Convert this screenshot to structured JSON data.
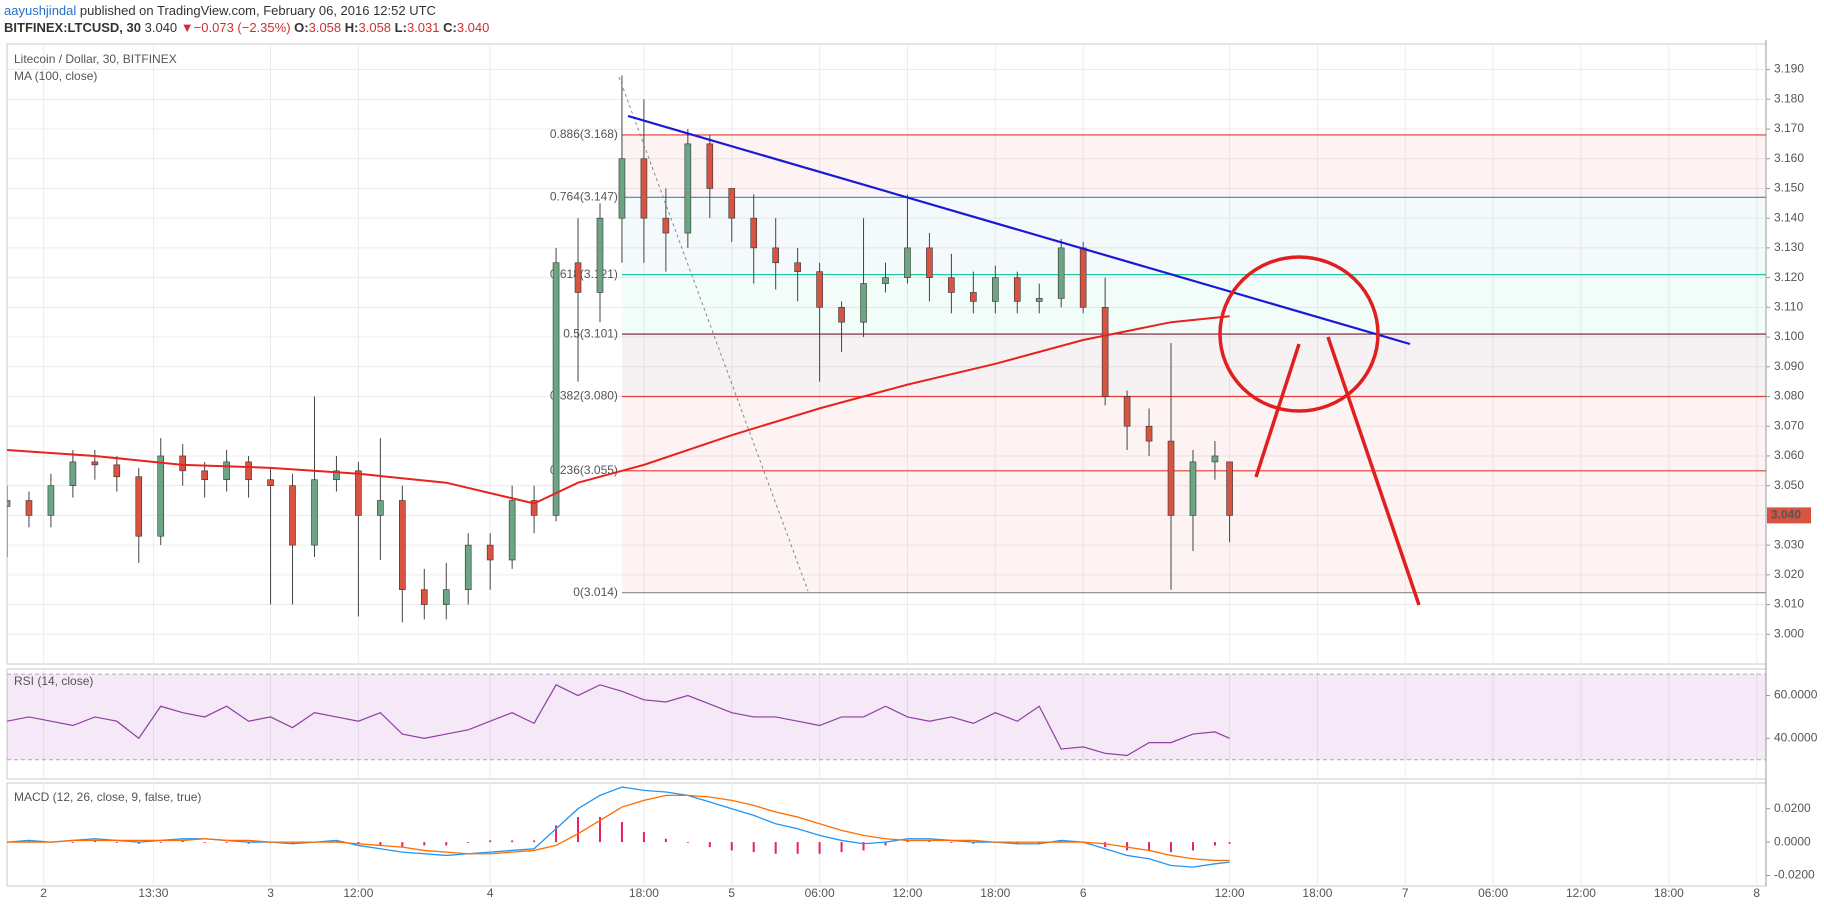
{
  "header": {
    "author": "aayushjindal",
    "published": "published on TradingView.com, February 06, 2016 12:52 UTC",
    "symbol": "BITFINEX:LTCUSD, 30",
    "last": "3.040",
    "change": "−0.073 (−2.35%)",
    "o_label": "O:",
    "o": "3.058",
    "h_label": "H:",
    "h": "3.058",
    "l_label": "L:",
    "l": "3.031",
    "c_label": "C:",
    "c": "3.040"
  },
  "chart_data": [
    {
      "type": "candlestick",
      "title": "Litecoin / Dollar, 30, BITFINEX",
      "x": [
        0,
        3,
        6,
        9,
        12,
        15,
        18,
        21,
        24,
        27,
        30,
        33,
        36,
        39,
        42,
        45,
        48,
        51,
        54,
        57,
        60,
        63,
        66,
        69,
        72,
        75,
        78,
        81,
        84,
        87,
        90,
        93,
        96,
        99,
        102,
        105,
        108,
        111,
        114,
        117,
        120,
        123,
        126,
        129,
        132,
        135,
        138,
        141,
        144,
        147,
        150,
        153,
        156,
        159,
        162,
        165,
        167
      ],
      "open": [
        3.043,
        3.045,
        3.04,
        3.05,
        3.058,
        3.057,
        3.053,
        3.033,
        3.06,
        3.055,
        3.052,
        3.058,
        3.052,
        3.05,
        3.03,
        3.052,
        3.055,
        3.04,
        3.045,
        3.015,
        3.01,
        3.015,
        3.03,
        3.025,
        3.045,
        3.04,
        3.125,
        3.115,
        3.14,
        3.16,
        3.14,
        3.135,
        3.165,
        3.15,
        3.14,
        3.13,
        3.125,
        3.122,
        3.11,
        3.105,
        3.118,
        3.12,
        3.13,
        3.12,
        3.115,
        3.112,
        3.12,
        3.112,
        3.113,
        3.13,
        3.11,
        3.08,
        3.07,
        3.065,
        3.04,
        3.058,
        3.058
      ],
      "high": [
        3.05,
        3.048,
        3.054,
        3.062,
        3.062,
        3.06,
        3.056,
        3.066,
        3.064,
        3.058,
        3.062,
        3.06,
        3.056,
        3.054,
        3.08,
        3.06,
        3.058,
        3.066,
        3.05,
        3.022,
        3.024,
        3.034,
        3.034,
        3.05,
        3.05,
        3.13,
        3.14,
        3.145,
        3.188,
        3.18,
        3.15,
        3.17,
        3.168,
        3.15,
        3.148,
        3.14,
        3.13,
        3.125,
        3.112,
        3.14,
        3.125,
        3.148,
        3.135,
        3.128,
        3.122,
        3.124,
        3.122,
        3.118,
        3.133,
        3.132,
        3.12,
        3.082,
        3.076,
        3.098,
        3.062,
        3.065,
        3.058
      ],
      "low": [
        3.026,
        3.036,
        3.036,
        3.046,
        3.052,
        3.048,
        3.024,
        3.03,
        3.05,
        3.046,
        3.048,
        3.046,
        3.01,
        3.01,
        3.026,
        3.048,
        3.006,
        3.025,
        3.004,
        3.005,
        3.005,
        3.01,
        3.015,
        3.022,
        3.034,
        3.038,
        3.085,
        3.105,
        3.125,
        3.125,
        3.122,
        3.13,
        3.14,
        3.132,
        3.118,
        3.116,
        3.112,
        3.085,
        3.095,
        3.1,
        3.115,
        3.118,
        3.112,
        3.108,
        3.108,
        3.108,
        3.108,
        3.108,
        3.11,
        3.108,
        3.077,
        3.062,
        3.06,
        3.015,
        3.028,
        3.052,
        3.031
      ],
      "close": [
        3.045,
        3.04,
        3.05,
        3.058,
        3.057,
        3.053,
        3.033,
        3.06,
        3.055,
        3.052,
        3.058,
        3.052,
        3.05,
        3.03,
        3.052,
        3.055,
        3.04,
        3.045,
        3.015,
        3.01,
        3.015,
        3.03,
        3.025,
        3.045,
        3.04,
        3.125,
        3.115,
        3.14,
        3.16,
        3.14,
        3.135,
        3.165,
        3.15,
        3.14,
        3.13,
        3.125,
        3.122,
        3.11,
        3.105,
        3.118,
        3.12,
        3.13,
        3.12,
        3.115,
        3.112,
        3.12,
        3.112,
        3.113,
        3.13,
        3.11,
        3.08,
        3.07,
        3.065,
        3.04,
        3.058,
        3.06,
        3.04
      ],
      "up_color": "#6ba583",
      "down_color": "#d75442",
      "series": [
        {
          "name": "MA (100, close)",
          "color": "#e8221c",
          "x": [
            0,
            12,
            24,
            36,
            48,
            60,
            72,
            78,
            87,
            99,
            111,
            123,
            135,
            147,
            159,
            167
          ],
          "values": [
            3.062,
            3.06,
            3.057,
            3.056,
            3.054,
            3.051,
            3.044,
            3.051,
            3.057,
            3.067,
            3.076,
            3.084,
            3.091,
            3.099,
            3.105,
            3.107
          ]
        }
      ],
      "fib": [
        {
          "value": 3.168,
          "label": "0.886(3.168)",
          "color": "#e53935"
        },
        {
          "value": 3.147,
          "label": "0.764(3.147)",
          "color": "#3d9bd1"
        },
        {
          "value": 3.121,
          "label": "0.618(3.121)",
          "color": "#26c6a0"
        },
        {
          "value": 3.101,
          "label": "0.5(3.101)",
          "color": "#6d1b2d"
        },
        {
          "value": 3.08,
          "label": "0.382(3.080)",
          "color": "#e53935"
        },
        {
          "value": 3.055,
          "label": "0.236(3.055)",
          "color": "#e53935"
        },
        {
          "value": 3.014,
          "label": "0(3.014)",
          "color": "#888888"
        }
      ],
      "last_price": {
        "value": 3.04,
        "label": "3.040"
      },
      "xlim": [
        0,
        240
      ],
      "ylim": [
        2.99,
        3.1986
      ],
      "yticks": [
        {
          "value": 3.0,
          "label": "3.000"
        },
        {
          "value": 3.01,
          "label": "3.010"
        },
        {
          "value": 3.02,
          "label": "3.020"
        },
        {
          "value": 3.03,
          "label": "3.030"
        },
        {
          "value": 3.04,
          "label": "3.040"
        },
        {
          "value": 3.05,
          "label": "3.050"
        },
        {
          "value": 3.06,
          "label": "3.060"
        },
        {
          "value": 3.07,
          "label": "3.070"
        },
        {
          "value": 3.08,
          "label": "3.080"
        },
        {
          "value": 3.09,
          "label": "3.090"
        },
        {
          "value": 3.1,
          "label": "3.100"
        },
        {
          "value": 3.11,
          "label": "3.110"
        },
        {
          "value": 3.12,
          "label": "3.120"
        },
        {
          "value": 3.13,
          "label": "3.130"
        },
        {
          "value": 3.14,
          "label": "3.140"
        },
        {
          "value": 3.15,
          "label": "3.150"
        },
        {
          "value": 3.16,
          "label": "3.160"
        },
        {
          "value": 3.17,
          "label": "3.170"
        },
        {
          "value": 3.18,
          "label": "3.180"
        },
        {
          "value": 3.19,
          "label": "3.190"
        }
      ],
      "xticks": [
        {
          "value": 5,
          "label": "2"
        },
        {
          "value": 20,
          "label": "13:30"
        },
        {
          "value": 36,
          "label": "3"
        },
        {
          "value": 48,
          "label": "12:00"
        },
        {
          "value": 66,
          "label": "4"
        },
        {
          "value": 87,
          "label": "18:00"
        },
        {
          "value": 99,
          "label": "5"
        },
        {
          "value": 111,
          "label": "06:00"
        },
        {
          "value": 123,
          "label": "12:00"
        },
        {
          "value": 135,
          "label": "18:00"
        },
        {
          "value": 147,
          "label": "6"
        },
        {
          "value": 167,
          "label": "12:00"
        },
        {
          "value": 179,
          "label": "18:00"
        },
        {
          "value": 191,
          "label": "7"
        },
        {
          "value": 203,
          "label": "06:00"
        },
        {
          "value": 215,
          "label": "12:00"
        },
        {
          "value": 227,
          "label": "18:00"
        },
        {
          "value": 239,
          "label": "8"
        }
      ],
      "grid": true
    },
    {
      "type": "line",
      "title": "RSI (14, close)",
      "color": "#8e3fa0",
      "x": [
        0,
        3,
        6,
        9,
        12,
        15,
        18,
        21,
        24,
        27,
        30,
        33,
        36,
        39,
        42,
        45,
        48,
        51,
        54,
        57,
        60,
        63,
        66,
        69,
        72,
        75,
        78,
        81,
        84,
        87,
        90,
        93,
        96,
        99,
        102,
        105,
        108,
        111,
        114,
        117,
        120,
        123,
        126,
        129,
        132,
        135,
        138,
        141,
        144,
        147,
        150,
        153,
        156,
        159,
        162,
        165,
        167
      ],
      "values": [
        48,
        50,
        48,
        46,
        50,
        48,
        40,
        55,
        52,
        50,
        55,
        48,
        50,
        45,
        52,
        50,
        48,
        52,
        42,
        40,
        42,
        44,
        48,
        52,
        47,
        65,
        60,
        65,
        62,
        58,
        57,
        60,
        56,
        52,
        50,
        50,
        48,
        46,
        50,
        50,
        55,
        50,
        48,
        50,
        47,
        52,
        48,
        55,
        35,
        36,
        33,
        32,
        38,
        38,
        42,
        43,
        40
      ],
      "band": [
        30,
        70
      ],
      "band_color": "#9c27b0",
      "ylim": [
        21,
        72.4
      ],
      "yticks": [
        {
          "value": 40,
          "label": "40.0000"
        },
        {
          "value": 60,
          "label": "60.0000"
        }
      ]
    },
    {
      "type": "macd",
      "title": "MACD (12, 26, close, 9, false, true)",
      "x": [
        0,
        3,
        6,
        9,
        12,
        15,
        18,
        21,
        24,
        27,
        30,
        33,
        36,
        39,
        42,
        45,
        48,
        51,
        54,
        57,
        60,
        63,
        66,
        69,
        72,
        75,
        78,
        81,
        84,
        87,
        90,
        93,
        96,
        99,
        102,
        105,
        108,
        111,
        114,
        117,
        120,
        123,
        126,
        129,
        132,
        135,
        138,
        141,
        144,
        147,
        150,
        153,
        156,
        159,
        162,
        165,
        167
      ],
      "series": [
        {
          "color": "#2196f3",
          "values": [
            0.0,
            0.001,
            0.0,
            0.001,
            0.002,
            0.001,
            0.0,
            0.001,
            0.002,
            0.002,
            0.001,
            0.0,
            0.0,
            -0.001,
            0.0,
            0.001,
            -0.002,
            -0.004,
            -0.006,
            -0.007,
            -0.008,
            -0.007,
            -0.006,
            -0.005,
            -0.004,
            0.008,
            0.02,
            0.028,
            0.033,
            0.031,
            0.03,
            0.028,
            0.024,
            0.02,
            0.016,
            0.011,
            0.008,
            0.004,
            0.001,
            -0.001,
            0.0,
            0.002,
            0.002,
            0.001,
            0.0,
            0.0,
            -0.001,
            -0.001,
            0.001,
            0.0,
            -0.004,
            -0.008,
            -0.01,
            -0.014,
            -0.015,
            -0.013,
            -0.012
          ]
        },
        {
          "color": "#ff6d00",
          "values": [
            0.0,
            0.0,
            0.0,
            0.001,
            0.001,
            0.001,
            0.001,
            0.001,
            0.001,
            0.002,
            0.001,
            0.001,
            0.0,
            0.0,
            0.0,
            0.0,
            -0.001,
            -0.002,
            -0.003,
            -0.005,
            -0.006,
            -0.007,
            -0.007,
            -0.006,
            -0.005,
            -0.002,
            0.005,
            0.013,
            0.021,
            0.025,
            0.028,
            0.028,
            0.027,
            0.025,
            0.022,
            0.018,
            0.015,
            0.011,
            0.007,
            0.004,
            0.002,
            0.001,
            0.001,
            0.001,
            0.001,
            0.0,
            0.0,
            0.0,
            0.0,
            0.0,
            -0.001,
            -0.003,
            -0.005,
            -0.008,
            -0.01,
            -0.011,
            -0.011
          ]
        }
      ],
      "histogram": {
        "color": "#e91e63",
        "values": [
          0,
          0.001,
          0,
          0,
          0.001,
          0,
          -0.001,
          0,
          0.001,
          0,
          0,
          -0.001,
          0,
          -0.001,
          0,
          0.001,
          -0.001,
          -0.002,
          -0.003,
          -0.002,
          -0.002,
          0,
          0.001,
          0.001,
          0.001,
          0.01,
          0.015,
          0.015,
          0.012,
          0.006,
          0.002,
          0,
          -0.003,
          -0.005,
          -0.006,
          -0.007,
          -0.007,
          -0.007,
          -0.006,
          -0.005,
          -0.002,
          0.001,
          0.001,
          0,
          -0.001,
          0,
          -0.001,
          -0.001,
          0.001,
          0,
          -0.003,
          -0.005,
          -0.005,
          -0.006,
          -0.005,
          -0.002,
          -0.001
        ]
      },
      "ylim": [
        -0.0263,
        0.0354
      ],
      "yticks": [
        {
          "value": 0.02,
          "label": "0.0200"
        },
        {
          "value": 0,
          "label": "0.0000"
        },
        {
          "value": -0.02,
          "label": "-0.0200"
        }
      ]
    }
  ]
}
